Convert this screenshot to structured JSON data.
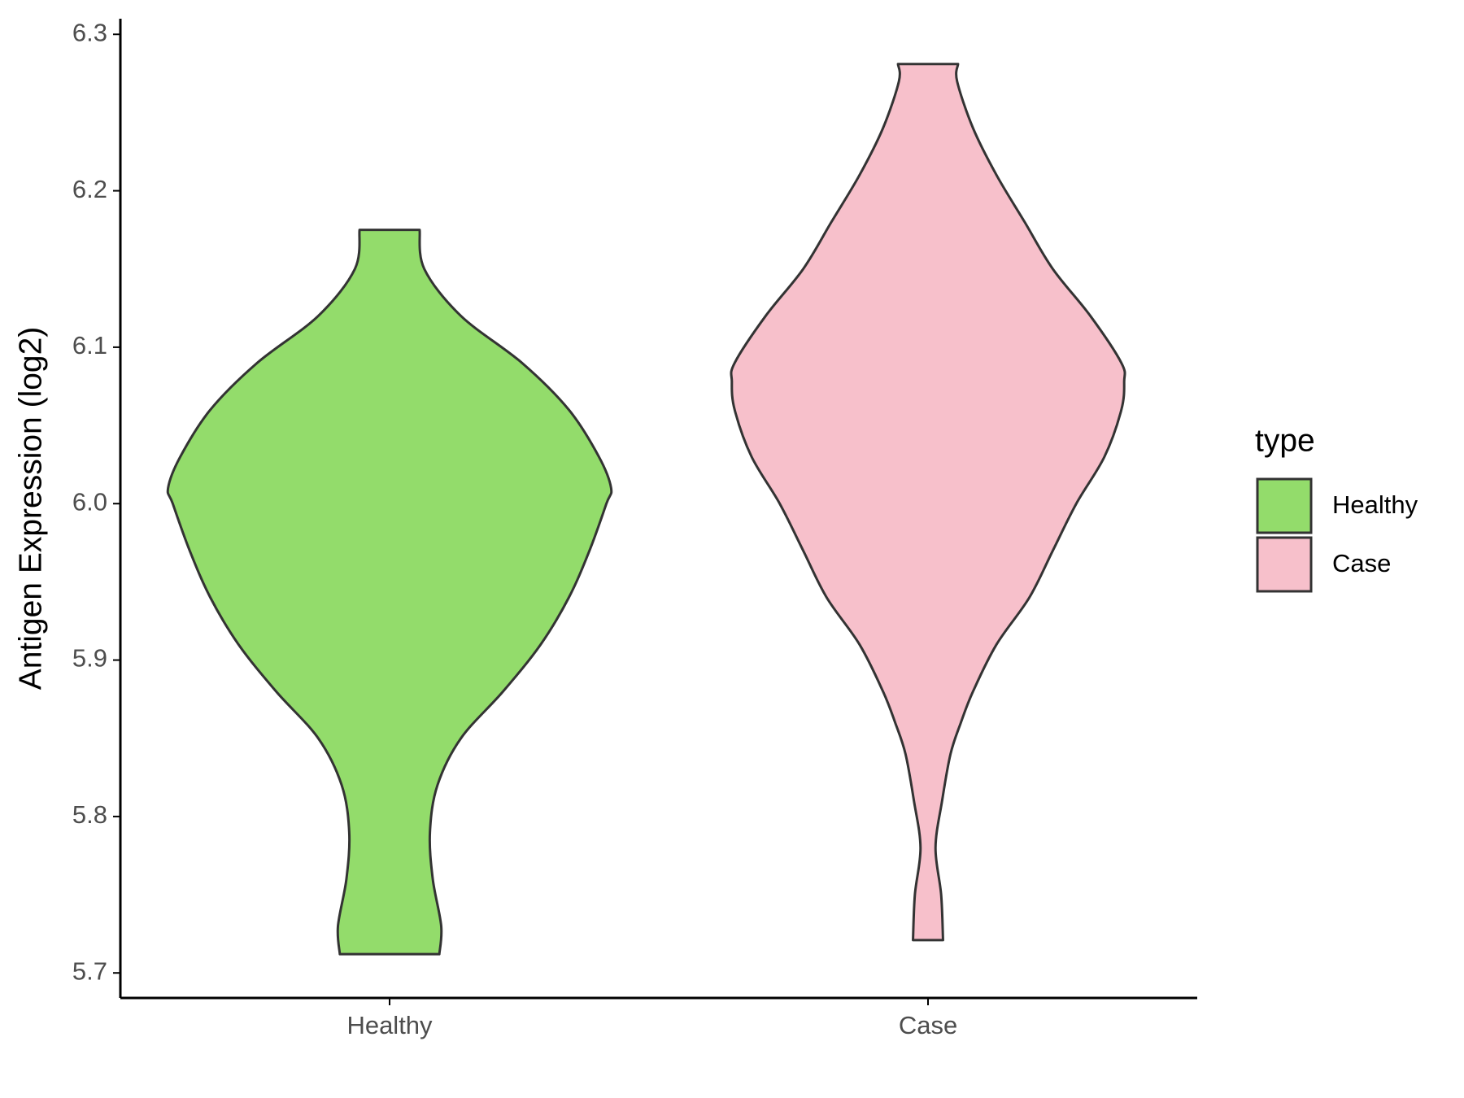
{
  "chart_data": {
    "type": "violin",
    "y_label": "Antigen Expression (log2)",
    "categories": [
      "Healthy",
      "Case"
    ],
    "legend_title": "type",
    "legend_position": "right",
    "ylim": [
      5.684,
      6.31
    ],
    "yticks": [
      5.7,
      5.8,
      5.9,
      {
        "value": 6.0,
        "label": "6.0"
      },
      6.1,
      6.2,
      6.3
    ],
    "series": [
      {
        "name": "Healthy",
        "color": "#93dc6b",
        "y": [
          5.712,
          5.73,
          5.76,
          5.79,
          5.82,
          5.85,
          5.88,
          5.91,
          5.94,
          5.97,
          6.0,
          6.01,
          6.03,
          6.06,
          6.09,
          6.12,
          6.15,
          6.175
        ],
        "density": [
          0.53,
          0.55,
          0.46,
          0.43,
          0.51,
          0.76,
          1.21,
          1.61,
          1.91,
          2.13,
          2.31,
          2.36,
          2.23,
          1.91,
          1.41,
          0.76,
          0.37,
          0.32
        ]
      },
      {
        "name": "Case",
        "color": "#f7c0cb",
        "y": [
          5.721,
          5.75,
          5.78,
          5.81,
          5.84,
          5.86,
          5.88,
          5.91,
          5.94,
          5.97,
          6.0,
          6.03,
          6.06,
          6.078,
          6.09,
          6.12,
          6.15,
          6.18,
          6.21,
          6.24,
          6.27,
          6.281
        ],
        "density": [
          0.16,
          0.14,
          0.08,
          0.15,
          0.24,
          0.35,
          0.48,
          0.73,
          1.08,
          1.33,
          1.58,
          1.88,
          2.06,
          2.09,
          2.06,
          1.73,
          1.33,
          1.03,
          0.73,
          0.48,
          0.31,
          0.32
        ]
      }
    ]
  }
}
